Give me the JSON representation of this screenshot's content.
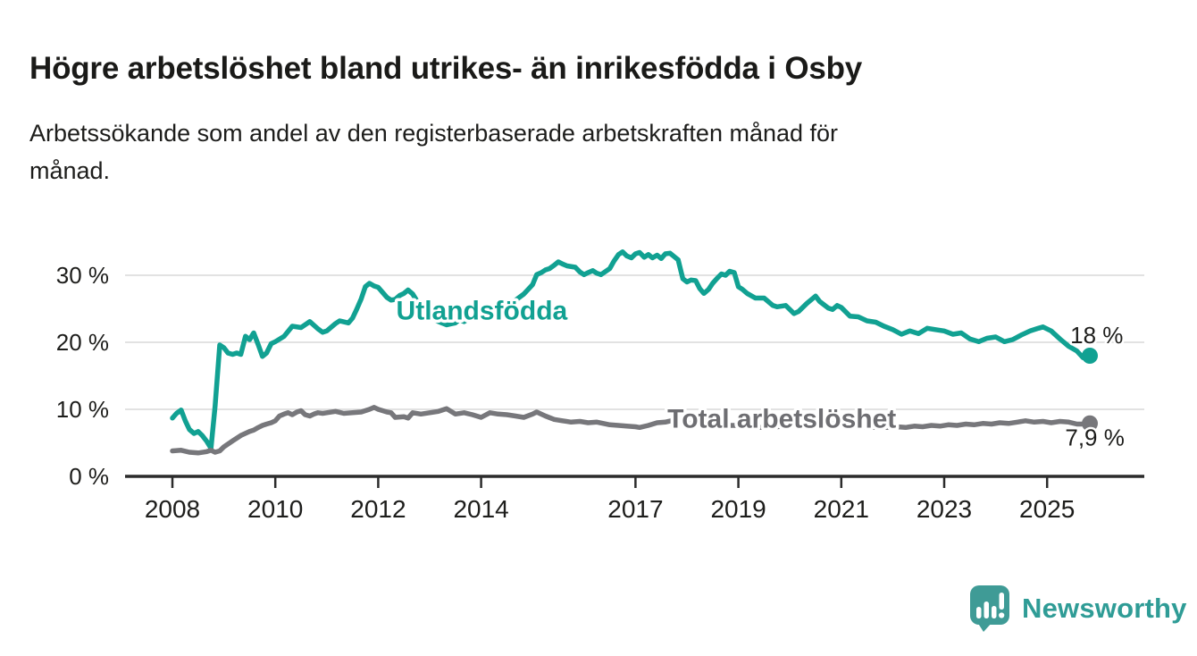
{
  "header": {
    "title": "Högre arbetslöshet bland utrikes- än inrikesfödda i Osby",
    "subtitle_lines": [
      "Arbetssökande som andel av den registerbaserade arbetskraften månad för",
      "månad."
    ]
  },
  "branding": {
    "logo_text": "Newsworthy",
    "logo_icon": "bar-chart-speech-bubble-icon",
    "logo_color": "#2f9c96",
    "logo_bubble_color": "#3f9b96"
  },
  "chart_data": {
    "type": "line",
    "title": "Högre arbetslöshet bland utrikes- än inrikesfödda i Osby",
    "subtitle": "Arbetssökande som andel av den registerbaserade arbetskraften månad för månad.",
    "unit": "%",
    "grid": true,
    "legend_position": "inline-labels-on-lines",
    "style": {
      "grid_color": "#d8d8d8",
      "axis_color": "#2b2b2b",
      "text_color": "#1d1d1b"
    },
    "x_axis": {
      "label": "",
      "domain": [
        2007.6,
        2026.4
      ],
      "ticks": [
        2008,
        2010,
        2012,
        2014,
        2017,
        2019,
        2021,
        2023,
        2025
      ],
      "tick_labels": [
        "2008",
        "2010",
        "2012",
        "2014",
        "2017",
        "2019",
        "2021",
        "2023",
        "2025"
      ]
    },
    "y_axis": {
      "label": "",
      "domain": [
        0,
        35
      ],
      "ticks": [
        0,
        10,
        20,
        30
      ],
      "tick_labels": [
        "0 %",
        "10 %",
        "20 %",
        "30 %"
      ]
    },
    "series": [
      {
        "id": "utlandsfodda",
        "name": "Utlandsfödda",
        "color": "#11a192",
        "label_color": "#11a192",
        "label": {
          "x": 2012.35,
          "y": 23.4
        },
        "end_label": {
          "text": "18 %",
          "x": 2025.45,
          "y": 19.9
        },
        "last_value": "18 %",
        "points": [
          [
            2008.0,
            8.7
          ],
          [
            2008.08,
            9.4
          ],
          [
            2008.17,
            9.9
          ],
          [
            2008.25,
            8.3
          ],
          [
            2008.33,
            7.0
          ],
          [
            2008.42,
            6.4
          ],
          [
            2008.5,
            6.7
          ],
          [
            2008.58,
            6.1
          ],
          [
            2008.67,
            5.2
          ],
          [
            2008.75,
            4.2
          ],
          [
            2008.83,
            10.5
          ],
          [
            2008.92,
            19.6
          ],
          [
            2009.0,
            19.2
          ],
          [
            2009.08,
            18.4
          ],
          [
            2009.17,
            18.2
          ],
          [
            2009.25,
            18.4
          ],
          [
            2009.33,
            18.2
          ],
          [
            2009.42,
            20.9
          ],
          [
            2009.5,
            20.4
          ],
          [
            2009.58,
            21.4
          ],
          [
            2009.67,
            19.6
          ],
          [
            2009.75,
            17.9
          ],
          [
            2009.83,
            18.4
          ],
          [
            2009.92,
            19.8
          ],
          [
            2010.0,
            20.1
          ],
          [
            2010.17,
            20.9
          ],
          [
            2010.33,
            22.4
          ],
          [
            2010.5,
            22.2
          ],
          [
            2010.67,
            23.1
          ],
          [
            2010.83,
            22.0
          ],
          [
            2010.92,
            21.5
          ],
          [
            2011.0,
            21.7
          ],
          [
            2011.17,
            22.8
          ],
          [
            2011.25,
            23.2
          ],
          [
            2011.42,
            22.9
          ],
          [
            2011.5,
            23.6
          ],
          [
            2011.58,
            24.9
          ],
          [
            2011.67,
            26.5
          ],
          [
            2011.75,
            28.3
          ],
          [
            2011.83,
            28.8
          ],
          [
            2011.92,
            28.4
          ],
          [
            2012.0,
            28.2
          ],
          [
            2012.08,
            27.5
          ],
          [
            2012.17,
            26.7
          ],
          [
            2012.25,
            26.3
          ],
          [
            2012.33,
            26.4
          ],
          [
            2012.42,
            27.0
          ],
          [
            2012.5,
            27.3
          ],
          [
            2012.58,
            27.8
          ],
          [
            2012.67,
            27.2
          ],
          [
            2012.75,
            26.2
          ],
          [
            2012.83,
            25.2
          ],
          [
            2012.92,
            24.4
          ],
          [
            2013.0,
            23.8
          ],
          [
            2013.17,
            23.1
          ],
          [
            2013.33,
            22.6
          ],
          [
            2013.5,
            22.9
          ],
          [
            2013.58,
            23.4
          ],
          [
            2013.67,
            23.1
          ],
          [
            2013.83,
            23.9
          ],
          [
            2014.0,
            24.8
          ],
          [
            2014.17,
            25.2
          ],
          [
            2014.33,
            25.6
          ],
          [
            2014.5,
            25.9
          ],
          [
            2014.67,
            26.3
          ],
          [
            2014.83,
            27.2
          ],
          [
            2015.0,
            28.6
          ],
          [
            2015.08,
            30.1
          ],
          [
            2015.17,
            30.4
          ],
          [
            2015.25,
            30.8
          ],
          [
            2015.33,
            31.0
          ],
          [
            2015.42,
            31.5
          ],
          [
            2015.5,
            32.0
          ],
          [
            2015.58,
            31.7
          ],
          [
            2015.67,
            31.4
          ],
          [
            2015.83,
            31.2
          ],
          [
            2015.92,
            30.5
          ],
          [
            2016.0,
            30.1
          ],
          [
            2016.08,
            30.4
          ],
          [
            2016.17,
            30.7
          ],
          [
            2016.25,
            30.3
          ],
          [
            2016.33,
            30.1
          ],
          [
            2016.5,
            31.0
          ],
          [
            2016.58,
            32.1
          ],
          [
            2016.67,
            33.1
          ],
          [
            2016.75,
            33.5
          ],
          [
            2016.83,
            32.9
          ],
          [
            2016.92,
            32.6
          ],
          [
            2017.0,
            33.2
          ],
          [
            2017.08,
            33.4
          ],
          [
            2017.17,
            32.7
          ],
          [
            2017.25,
            33.1
          ],
          [
            2017.33,
            32.6
          ],
          [
            2017.42,
            33.0
          ],
          [
            2017.5,
            32.5
          ],
          [
            2017.58,
            33.2
          ],
          [
            2017.67,
            33.3
          ],
          [
            2017.75,
            32.8
          ],
          [
            2017.83,
            32.3
          ],
          [
            2017.92,
            29.5
          ],
          [
            2018.0,
            29.0
          ],
          [
            2018.08,
            29.3
          ],
          [
            2018.17,
            29.2
          ],
          [
            2018.25,
            28.0
          ],
          [
            2018.33,
            27.3
          ],
          [
            2018.42,
            27.9
          ],
          [
            2018.5,
            28.8
          ],
          [
            2018.58,
            29.5
          ],
          [
            2018.67,
            30.2
          ],
          [
            2018.75,
            30.0
          ],
          [
            2018.83,
            30.6
          ],
          [
            2018.92,
            30.4
          ],
          [
            2019.0,
            28.3
          ],
          [
            2019.08,
            27.9
          ],
          [
            2019.17,
            27.3
          ],
          [
            2019.33,
            26.6
          ],
          [
            2019.5,
            26.6
          ],
          [
            2019.67,
            25.5
          ],
          [
            2019.75,
            25.3
          ],
          [
            2019.92,
            25.5
          ],
          [
            2020.08,
            24.3
          ],
          [
            2020.17,
            24.6
          ],
          [
            2020.33,
            25.8
          ],
          [
            2020.5,
            26.9
          ],
          [
            2020.58,
            26.1
          ],
          [
            2020.75,
            25.1
          ],
          [
            2020.83,
            24.9
          ],
          [
            2020.92,
            25.5
          ],
          [
            2021.0,
            25.2
          ],
          [
            2021.17,
            23.9
          ],
          [
            2021.33,
            23.8
          ],
          [
            2021.5,
            23.2
          ],
          [
            2021.67,
            23.0
          ],
          [
            2021.83,
            22.4
          ],
          [
            2022.0,
            21.9
          ],
          [
            2022.17,
            21.2
          ],
          [
            2022.33,
            21.7
          ],
          [
            2022.5,
            21.3
          ],
          [
            2022.67,
            22.1
          ],
          [
            2022.83,
            21.9
          ],
          [
            2023.0,
            21.7
          ],
          [
            2023.17,
            21.2
          ],
          [
            2023.33,
            21.4
          ],
          [
            2023.5,
            20.5
          ],
          [
            2023.67,
            20.1
          ],
          [
            2023.83,
            20.6
          ],
          [
            2024.0,
            20.8
          ],
          [
            2024.17,
            20.1
          ],
          [
            2024.33,
            20.4
          ],
          [
            2024.5,
            21.1
          ],
          [
            2024.67,
            21.7
          ],
          [
            2024.83,
            22.1
          ],
          [
            2024.92,
            22.3
          ],
          [
            2025.08,
            21.7
          ],
          [
            2025.25,
            20.5
          ],
          [
            2025.42,
            19.4
          ],
          [
            2025.58,
            18.7
          ],
          [
            2025.7,
            17.7
          ],
          [
            2025.83,
            18.0
          ]
        ]
      },
      {
        "id": "total",
        "name": "Total arbetslöshet",
        "color": "#77777b",
        "label_color": "#6e6e72",
        "label": {
          "x": 2017.62,
          "y": 7.3
        },
        "end_label": {
          "text": "7,9 %",
          "x": 2025.35,
          "y": 4.6
        },
        "last_value": "7,9 %",
        "points": [
          [
            2008.0,
            3.8
          ],
          [
            2008.17,
            3.9
          ],
          [
            2008.33,
            3.6
          ],
          [
            2008.5,
            3.5
          ],
          [
            2008.67,
            3.7
          ],
          [
            2008.75,
            3.9
          ],
          [
            2008.83,
            3.6
          ],
          [
            2008.92,
            3.8
          ],
          [
            2009.0,
            4.4
          ],
          [
            2009.17,
            5.3
          ],
          [
            2009.33,
            6.1
          ],
          [
            2009.5,
            6.7
          ],
          [
            2009.58,
            6.9
          ],
          [
            2009.67,
            7.3
          ],
          [
            2009.75,
            7.6
          ],
          [
            2009.83,
            7.8
          ],
          [
            2009.92,
            8.0
          ],
          [
            2010.0,
            8.3
          ],
          [
            2010.08,
            9.0
          ],
          [
            2010.17,
            9.3
          ],
          [
            2010.25,
            9.5
          ],
          [
            2010.33,
            9.2
          ],
          [
            2010.42,
            9.6
          ],
          [
            2010.5,
            9.8
          ],
          [
            2010.58,
            9.2
          ],
          [
            2010.67,
            9.0
          ],
          [
            2010.75,
            9.3
          ],
          [
            2010.83,
            9.5
          ],
          [
            2010.92,
            9.4
          ],
          [
            2011.0,
            9.5
          ],
          [
            2011.17,
            9.7
          ],
          [
            2011.33,
            9.4
          ],
          [
            2011.5,
            9.5
          ],
          [
            2011.67,
            9.6
          ],
          [
            2011.83,
            10.0
          ],
          [
            2011.92,
            10.3
          ],
          [
            2012.0,
            10.0
          ],
          [
            2012.17,
            9.6
          ],
          [
            2012.25,
            9.5
          ],
          [
            2012.33,
            8.8
          ],
          [
            2012.5,
            8.9
          ],
          [
            2012.58,
            8.7
          ],
          [
            2012.67,
            9.5
          ],
          [
            2012.83,
            9.3
          ],
          [
            2013.0,
            9.5
          ],
          [
            2013.17,
            9.7
          ],
          [
            2013.33,
            10.1
          ],
          [
            2013.5,
            9.3
          ],
          [
            2013.67,
            9.5
          ],
          [
            2013.83,
            9.2
          ],
          [
            2014.0,
            8.8
          ],
          [
            2014.17,
            9.5
          ],
          [
            2014.33,
            9.3
          ],
          [
            2014.5,
            9.2
          ],
          [
            2014.67,
            9.0
          ],
          [
            2014.83,
            8.8
          ],
          [
            2015.0,
            9.3
          ],
          [
            2015.08,
            9.6
          ],
          [
            2015.25,
            9.0
          ],
          [
            2015.42,
            8.5
          ],
          [
            2015.58,
            8.3
          ],
          [
            2015.75,
            8.1
          ],
          [
            2015.92,
            8.2
          ],
          [
            2016.08,
            8.0
          ],
          [
            2016.25,
            8.1
          ],
          [
            2016.5,
            7.7
          ],
          [
            2016.67,
            7.6
          ],
          [
            2016.83,
            7.5
          ],
          [
            2017.0,
            7.4
          ],
          [
            2017.08,
            7.3
          ],
          [
            2017.25,
            7.6
          ],
          [
            2017.42,
            8.0
          ],
          [
            2017.58,
            8.1
          ],
          [
            2017.75,
            8.4
          ],
          [
            2017.92,
            8.1
          ],
          [
            2018.08,
            7.9
          ],
          [
            2018.25,
            7.7
          ],
          [
            2018.42,
            7.9
          ],
          [
            2018.58,
            7.8
          ],
          [
            2018.75,
            7.6
          ],
          [
            2018.92,
            7.6
          ],
          [
            2019.08,
            7.5
          ],
          [
            2019.25,
            7.4
          ],
          [
            2019.42,
            7.3
          ],
          [
            2019.58,
            7.3
          ],
          [
            2019.75,
            7.4
          ],
          [
            2019.92,
            7.5
          ],
          [
            2020.08,
            7.7
          ],
          [
            2020.25,
            7.9
          ],
          [
            2020.42,
            8.1
          ],
          [
            2020.58,
            8.0
          ],
          [
            2020.75,
            7.9
          ],
          [
            2020.92,
            7.8
          ],
          [
            2021.08,
            7.7
          ],
          [
            2021.25,
            7.6
          ],
          [
            2021.42,
            7.4
          ],
          [
            2021.58,
            7.3
          ],
          [
            2021.75,
            7.3
          ],
          [
            2021.92,
            7.3
          ],
          [
            2022.08,
            7.4
          ],
          [
            2022.25,
            7.3
          ],
          [
            2022.42,
            7.5
          ],
          [
            2022.58,
            7.4
          ],
          [
            2022.75,
            7.6
          ],
          [
            2022.92,
            7.5
          ],
          [
            2023.08,
            7.7
          ],
          [
            2023.25,
            7.6
          ],
          [
            2023.42,
            7.8
          ],
          [
            2023.58,
            7.7
          ],
          [
            2023.75,
            7.9
          ],
          [
            2023.92,
            7.8
          ],
          [
            2024.08,
            8.0
          ],
          [
            2024.25,
            7.9
          ],
          [
            2024.42,
            8.1
          ],
          [
            2024.58,
            8.3
          ],
          [
            2024.75,
            8.1
          ],
          [
            2024.92,
            8.2
          ],
          [
            2025.08,
            8.0
          ],
          [
            2025.25,
            8.2
          ],
          [
            2025.42,
            8.1
          ],
          [
            2025.58,
            7.8
          ],
          [
            2025.75,
            7.8
          ],
          [
            2025.83,
            7.9
          ]
        ]
      }
    ]
  }
}
